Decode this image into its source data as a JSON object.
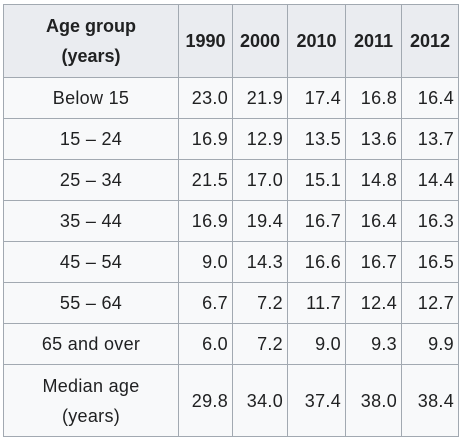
{
  "table": {
    "header": {
      "age_group_line1": "Age group",
      "age_group_line2": "(years)",
      "years": [
        "1990",
        "2000",
        "2010",
        "2011",
        "2012"
      ]
    },
    "rows": [
      {
        "label": "Below 15",
        "values": [
          "23.0",
          "21.9",
          "17.4",
          "16.8",
          "16.4"
        ]
      },
      {
        "label": "15 – 24",
        "values": [
          "16.9",
          "12.9",
          "13.5",
          "13.6",
          "13.7"
        ]
      },
      {
        "label": "25 – 34",
        "values": [
          "21.5",
          "17.0",
          "15.1",
          "14.8",
          "14.4"
        ]
      },
      {
        "label": "35 – 44",
        "values": [
          "16.9",
          "19.4",
          "16.7",
          "16.4",
          "16.3"
        ]
      },
      {
        "label": "45 – 54",
        "values": [
          "9.0",
          "14.3",
          "16.6",
          "16.7",
          "16.5"
        ]
      },
      {
        "label": "55 – 64",
        "values": [
          "6.7",
          "7.2",
          "11.7",
          "12.4",
          "12.7"
        ]
      },
      {
        "label": "65 and over",
        "values": [
          "6.0",
          "7.2",
          "9.0",
          "9.3",
          "9.9"
        ]
      }
    ],
    "median": {
      "label_line1": "Median age",
      "label_line2": "(years)",
      "values": [
        "29.8",
        "34.0",
        "37.4",
        "38.0",
        "38.4"
      ]
    }
  }
}
